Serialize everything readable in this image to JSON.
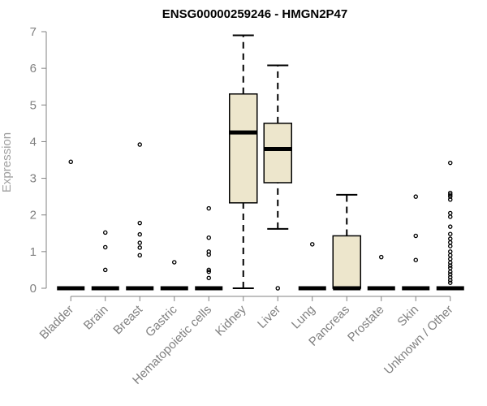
{
  "chart_data": {
    "type": "boxplot",
    "title": "ENSG00000259246 - HMGN2P47",
    "ylabel": "Expression",
    "xlabel": "",
    "ylim": [
      0,
      7
    ],
    "yticks": [
      0,
      1,
      2,
      3,
      4,
      5,
      6,
      7
    ],
    "grid": false,
    "legend": "none",
    "box_fill": "#ede6cc",
    "box_stroke": "#000000",
    "axis_color": "#808080",
    "categories": [
      "Bladder",
      "Brain",
      "Breast",
      "Gastric",
      "Hematopoietic cells",
      "Kidney",
      "Liver",
      "Lung",
      "Pancreas",
      "Prostate",
      "Skin",
      "Unknown / Other"
    ],
    "boxes": [
      {
        "name": "Bladder",
        "min": 0,
        "q1": 0,
        "median": 0,
        "q3": 0,
        "max": 0,
        "outliers": [
          3.45
        ]
      },
      {
        "name": "Brain",
        "min": 0,
        "q1": 0,
        "median": 0,
        "q3": 0,
        "max": 0,
        "outliers": [
          1.52,
          1.12,
          0.5
        ]
      },
      {
        "name": "Breast",
        "min": 0,
        "q1": 0,
        "median": 0,
        "q3": 0,
        "max": 0,
        "outliers": [
          3.92,
          1.78,
          1.47,
          1.24,
          1.11,
          0.9
        ]
      },
      {
        "name": "Gastric",
        "min": 0,
        "q1": 0,
        "median": 0,
        "q3": 0,
        "max": 0,
        "outliers": [
          0.71
        ]
      },
      {
        "name": "Hematopoietic cells",
        "min": 0,
        "q1": 0,
        "median": 0,
        "q3": 0,
        "max": 0,
        "outliers": [
          2.18,
          1.38,
          1.0,
          0.92,
          0.5,
          0.45,
          0.28
        ]
      },
      {
        "name": "Kidney",
        "min": 0,
        "q1": 2.33,
        "median": 4.25,
        "q3": 5.3,
        "max": 6.9,
        "outliers": []
      },
      {
        "name": "Liver",
        "min": 1.62,
        "q1": 2.88,
        "median": 3.8,
        "q3": 4.5,
        "max": 6.08,
        "outliers": [
          0
        ]
      },
      {
        "name": "Lung",
        "min": 0,
        "q1": 0,
        "median": 0,
        "q3": 0,
        "max": 0,
        "outliers": [
          1.2
        ]
      },
      {
        "name": "Pancreas",
        "min": 0,
        "q1": 0,
        "median": 0,
        "q3": 1.43,
        "max": 2.55,
        "outliers": []
      },
      {
        "name": "Prostate",
        "min": 0,
        "q1": 0,
        "median": 0,
        "q3": 0,
        "max": 0,
        "outliers": [
          0.85
        ]
      },
      {
        "name": "Skin",
        "min": 0,
        "q1": 0,
        "median": 0,
        "q3": 0,
        "max": 0,
        "outliers": [
          2.5,
          1.43,
          0.77
        ]
      },
      {
        "name": "Unknown / Other",
        "min": 0,
        "q1": 0,
        "median": 0,
        "q3": 0,
        "max": 0,
        "outliers": [
          3.42,
          2.6,
          2.55,
          2.5,
          2.42,
          2.05,
          1.95,
          1.68,
          1.48,
          1.35,
          1.25,
          1.15,
          1.0,
          0.9,
          0.8,
          0.7,
          0.62,
          0.55,
          0.45,
          0.38,
          0.3,
          0.22,
          0.15
        ]
      }
    ]
  }
}
